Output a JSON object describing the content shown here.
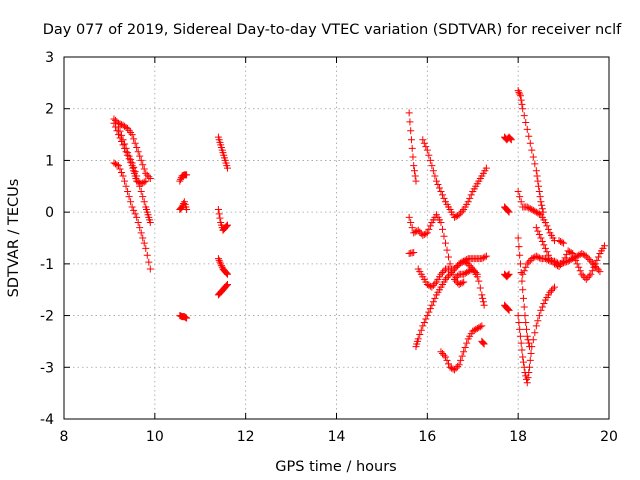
{
  "chart_data": {
    "type": "scatter",
    "title": "Day 077 of 2019, Sidereal Day-to-day VTEC variation (SDTVAR) for receiver nclf",
    "xlabel": "GPS time / hours",
    "ylabel": "SDTVAR / TECUs",
    "xlim": [
      8,
      20
    ],
    "ylim": [
      -4,
      3
    ],
    "xticks": [
      "8",
      "10",
      "12",
      "14",
      "16",
      "18",
      "20"
    ],
    "yticks": [
      "-4",
      "-3",
      "-2",
      "-1",
      "0",
      "1",
      "2",
      "3"
    ],
    "grid": true,
    "marker": "+",
    "color": "#ff0000",
    "tracks": [
      [
        [
          9.1,
          1.8
        ],
        [
          9.2,
          1.72
        ],
        [
          9.3,
          1.68
        ],
        [
          9.4,
          1.62
        ],
        [
          9.5,
          1.5
        ],
        [
          9.6,
          1.25
        ],
        [
          9.7,
          1.0
        ],
        [
          9.8,
          0.75
        ],
        [
          9.9,
          0.65
        ]
      ],
      [
        [
          9.1,
          1.72
        ],
        [
          9.2,
          1.5
        ],
        [
          9.3,
          1.3
        ],
        [
          9.4,
          1.1
        ],
        [
          9.5,
          0.9
        ],
        [
          9.55,
          0.75
        ],
        [
          9.6,
          0.6
        ],
        [
          9.7,
          0.55
        ],
        [
          9.8,
          0.6
        ]
      ],
      [
        [
          9.2,
          1.65
        ],
        [
          9.3,
          1.4
        ],
        [
          9.4,
          1.15
        ],
        [
          9.5,
          0.95
        ],
        [
          9.6,
          0.7
        ],
        [
          9.7,
          0.4
        ],
        [
          9.8,
          0.1
        ],
        [
          9.85,
          -0.05
        ],
        [
          9.9,
          -0.2
        ]
      ],
      [
        [
          9.1,
          0.95
        ],
        [
          9.2,
          0.9
        ],
        [
          9.3,
          0.7
        ],
        [
          9.4,
          0.4
        ],
        [
          9.5,
          0.1
        ],
        [
          9.6,
          -0.1
        ],
        [
          9.7,
          -0.4
        ],
        [
          9.8,
          -0.7
        ],
        [
          9.9,
          -1.1
        ]
      ],
      [
        [
          10.55,
          0.6
        ],
        [
          10.6,
          0.7
        ],
        [
          10.65,
          0.72
        ],
        [
          10.7,
          0.72
        ]
      ],
      [
        [
          10.55,
          0.05
        ],
        [
          10.6,
          0.1
        ],
        [
          10.65,
          0.2
        ],
        [
          10.7,
          0.05
        ]
      ],
      [
        [
          10.55,
          -2.0
        ],
        [
          10.6,
          -2.02
        ],
        [
          10.65,
          -2.02
        ],
        [
          10.7,
          -2.05
        ]
      ],
      [
        [
          11.4,
          1.45
        ],
        [
          11.45,
          1.3
        ],
        [
          11.5,
          1.15
        ],
        [
          11.55,
          1.0
        ],
        [
          11.6,
          0.85
        ]
      ],
      [
        [
          11.4,
          0.05
        ],
        [
          11.45,
          -0.2
        ],
        [
          11.5,
          -0.35
        ],
        [
          11.55,
          -0.3
        ],
        [
          11.6,
          -0.25
        ]
      ],
      [
        [
          11.4,
          -0.9
        ],
        [
          11.45,
          -1.0
        ],
        [
          11.5,
          -1.1
        ],
        [
          11.55,
          -1.15
        ],
        [
          11.6,
          -1.2
        ]
      ],
      [
        [
          11.4,
          -1.6
        ],
        [
          11.45,
          -1.55
        ],
        [
          11.5,
          -1.5
        ],
        [
          11.55,
          -1.45
        ],
        [
          11.6,
          -1.4
        ]
      ],
      [
        [
          15.6,
          1.92
        ],
        [
          15.65,
          1.4
        ],
        [
          15.7,
          0.9
        ],
        [
          15.75,
          0.6
        ]
      ],
      [
        [
          15.6,
          -0.1
        ],
        [
          15.7,
          -0.4
        ],
        [
          15.8,
          -0.35
        ],
        [
          15.9,
          -0.45
        ],
        [
          16.0,
          -0.4
        ],
        [
          16.1,
          -0.2
        ],
        [
          16.2,
          -0.05
        ],
        [
          16.3,
          -0.2
        ],
        [
          16.4,
          -0.6
        ],
        [
          16.5,
          -1.0
        ],
        [
          16.6,
          -1.3
        ],
        [
          16.7,
          -1.4
        ],
        [
          16.8,
          -1.35
        ]
      ],
      [
        [
          15.6,
          -0.8
        ],
        [
          15.7,
          -0.78
        ]
      ],
      [
        [
          15.8,
          -1.1
        ],
        [
          15.9,
          -1.25
        ],
        [
          16.0,
          -1.4
        ],
        [
          16.1,
          -1.45
        ],
        [
          16.2,
          -1.35
        ],
        [
          16.3,
          -1.2
        ],
        [
          16.4,
          -1.1
        ],
        [
          16.5,
          -1.1
        ],
        [
          16.6,
          -1.1
        ],
        [
          16.7,
          -1.0
        ],
        [
          16.8,
          -0.95
        ],
        [
          16.9,
          -0.9
        ],
        [
          17.0,
          -0.9
        ],
        [
          17.1,
          -0.9
        ],
        [
          17.2,
          -0.9
        ],
        [
          17.3,
          -0.85
        ]
      ],
      [
        [
          15.75,
          -2.6
        ],
        [
          15.8,
          -2.45
        ],
        [
          15.9,
          -2.2
        ],
        [
          16.0,
          -2.0
        ],
        [
          16.1,
          -1.8
        ],
        [
          16.2,
          -1.6
        ],
        [
          16.3,
          -1.45
        ],
        [
          16.4,
          -1.3
        ],
        [
          16.5,
          -1.2
        ],
        [
          16.6,
          -1.1
        ],
        [
          16.7,
          -1.0
        ],
        [
          16.8,
          -0.95
        ],
        [
          16.9,
          -1.0
        ],
        [
          17.0,
          -1.1
        ],
        [
          17.1,
          -1.25
        ]
      ],
      [
        [
          15.9,
          1.4
        ],
        [
          16.0,
          1.2
        ],
        [
          16.1,
          0.9
        ],
        [
          16.2,
          0.6
        ],
        [
          16.3,
          0.4
        ],
        [
          16.4,
          0.2
        ],
        [
          16.5,
          0.05
        ],
        [
          16.6,
          -0.1
        ],
        [
          16.7,
          -0.05
        ],
        [
          16.8,
          0.05
        ],
        [
          16.9,
          0.2
        ],
        [
          17.0,
          0.4
        ],
        [
          17.1,
          0.55
        ],
        [
          17.2,
          0.7
        ],
        [
          17.3,
          0.85
        ]
      ],
      [
        [
          16.3,
          -2.7
        ],
        [
          16.4,
          -2.8
        ],
        [
          16.5,
          -3.0
        ],
        [
          16.6,
          -3.05
        ],
        [
          16.7,
          -2.95
        ],
        [
          16.8,
          -2.7
        ],
        [
          16.9,
          -2.45
        ],
        [
          17.0,
          -2.3
        ],
        [
          17.1,
          -2.25
        ],
        [
          17.2,
          -2.2
        ]
      ],
      [
        [
          17.2,
          -2.5
        ],
        [
          17.25,
          -2.55
        ]
      ],
      [
        [
          16.6,
          -1.3
        ],
        [
          16.7,
          -1.2
        ],
        [
          16.8,
          -1.2
        ],
        [
          16.9,
          -1.15
        ],
        [
          17.0,
          -1.1
        ],
        [
          17.1,
          -1.2
        ],
        [
          17.2,
          -1.6
        ],
        [
          17.25,
          -1.8
        ]
      ],
      [
        [
          17.7,
          1.45
        ],
        [
          17.75,
          1.4
        ],
        [
          17.8,
          1.45
        ],
        [
          17.85,
          1.4
        ]
      ],
      [
        [
          17.7,
          0.1
        ],
        [
          17.75,
          0.05
        ],
        [
          17.8,
          0.0
        ]
      ],
      [
        [
          17.7,
          -1.2
        ],
        [
          17.75,
          -1.25
        ],
        [
          17.8,
          -1.2
        ]
      ],
      [
        [
          17.7,
          -1.8
        ],
        [
          17.75,
          -1.85
        ],
        [
          17.8,
          -1.9
        ]
      ],
      [
        [
          18.0,
          2.35
        ],
        [
          18.05,
          2.25
        ],
        [
          18.1,
          2.0
        ],
        [
          18.2,
          1.6
        ],
        [
          18.3,
          1.2
        ],
        [
          18.4,
          0.8
        ],
        [
          18.45,
          0.5
        ],
        [
          18.5,
          0.2
        ],
        [
          18.55,
          0.0
        ]
      ],
      [
        [
          18.0,
          0.4
        ],
        [
          18.1,
          0.1
        ],
        [
          18.2,
          0.1
        ],
        [
          18.3,
          0.05
        ],
        [
          18.4,
          0.0
        ],
        [
          18.5,
          -0.05
        ],
        [
          18.6,
          -0.2
        ],
        [
          18.7,
          -0.4
        ],
        [
          18.8,
          -0.55
        ]
      ],
      [
        [
          18.0,
          -0.5
        ],
        [
          18.05,
          -1.0
        ],
        [
          18.1,
          -1.5
        ],
        [
          18.15,
          -2.0
        ],
        [
          18.2,
          -2.4
        ],
        [
          18.25,
          -2.6
        ]
      ],
      [
        [
          18.0,
          -2.0
        ],
        [
          18.05,
          -2.4
        ],
        [
          18.1,
          -2.8
        ],
        [
          18.15,
          -3.1
        ],
        [
          18.2,
          -3.3
        ],
        [
          18.25,
          -3.0
        ],
        [
          18.3,
          -2.6
        ],
        [
          18.4,
          -2.2
        ],
        [
          18.5,
          -1.9
        ],
        [
          18.6,
          -1.7
        ],
        [
          18.7,
          -1.55
        ],
        [
          18.8,
          -1.45
        ]
      ],
      [
        [
          18.1,
          -1.2
        ],
        [
          18.2,
          -1.0
        ],
        [
          18.3,
          -0.9
        ],
        [
          18.4,
          -0.85
        ],
        [
          18.5,
          -0.9
        ],
        [
          18.6,
          -0.9
        ],
        [
          18.7,
          -0.95
        ],
        [
          18.8,
          -0.95
        ],
        [
          18.9,
          -1.0
        ],
        [
          19.0,
          -0.98
        ],
        [
          19.1,
          -0.95
        ],
        [
          19.2,
          -0.9
        ],
        [
          19.3,
          -0.85
        ],
        [
          19.4,
          -0.8
        ],
        [
          19.5,
          -0.85
        ],
        [
          19.6,
          -0.95
        ],
        [
          19.7,
          -1.05
        ],
        [
          19.8,
          -1.15
        ]
      ],
      [
        [
          18.4,
          -0.3
        ],
        [
          18.5,
          -0.5
        ],
        [
          18.6,
          -0.7
        ],
        [
          18.7,
          -0.9
        ],
        [
          18.8,
          -1.0
        ],
        [
          18.9,
          -1.05
        ],
        [
          19.0,
          -0.95
        ],
        [
          19.1,
          -0.75
        ],
        [
          19.2,
          -0.8
        ],
        [
          19.3,
          -1.0
        ],
        [
          19.4,
          -1.2
        ],
        [
          19.5,
          -1.3
        ],
        [
          19.6,
          -1.2
        ],
        [
          19.7,
          -1.0
        ],
        [
          19.8,
          -0.8
        ],
        [
          19.9,
          -0.65
        ]
      ],
      [
        [
          18.9,
          -0.55
        ],
        [
          19.0,
          -0.6
        ]
      ]
    ]
  }
}
